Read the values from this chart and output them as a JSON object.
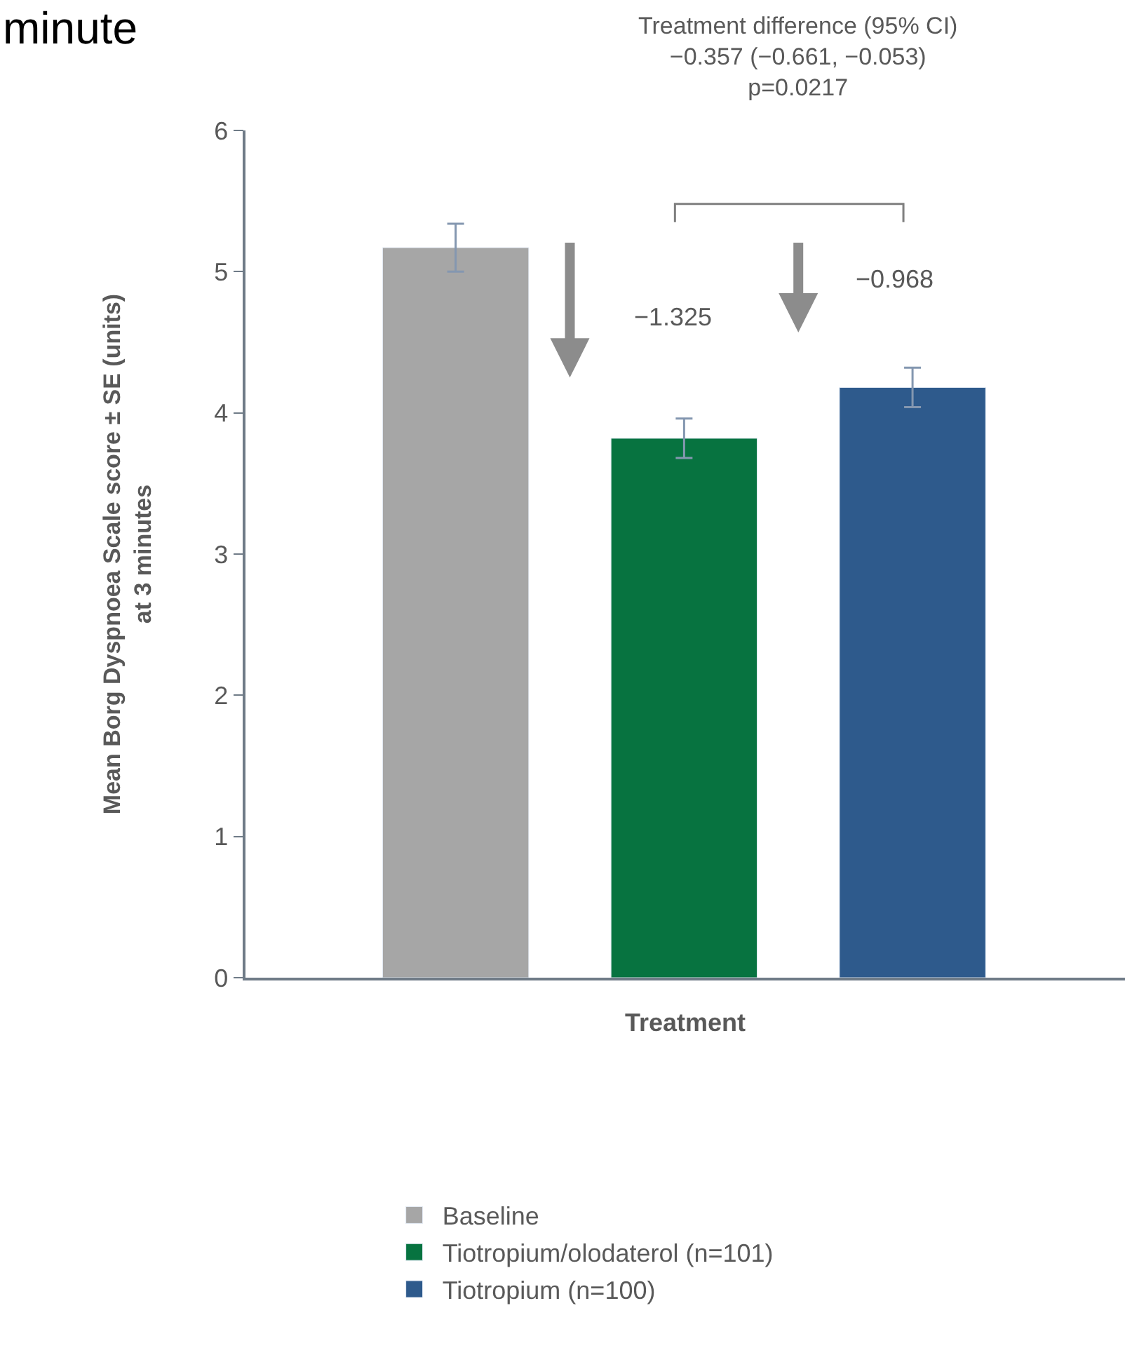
{
  "chart_data": {
    "type": "bar",
    "title": "minute",
    "xlabel": "Treatment",
    "ylabel": "Mean Borg Dyspnoea Scale score ± SE (units)\nat 3 minutes",
    "categories": [
      null,
      null,
      null
    ],
    "series": [
      {
        "name": "Baseline",
        "color": "#a6a6a6",
        "values": [
          5.17,
          null,
          null
        ],
        "errors": [
          0.17,
          null,
          null
        ]
      },
      {
        "name": "Tiotropium/olodaterol (n=101)",
        "color": "#077340",
        "values": [
          null,
          3.82,
          null
        ],
        "errors": [
          null,
          0.14,
          null
        ]
      },
      {
        "name": "Tiotropium (n=100)",
        "color": "#2e5a8c",
        "values": [
          null,
          null,
          4.18
        ],
        "errors": [
          null,
          null,
          0.14
        ]
      }
    ],
    "ylim": [
      0,
      6
    ],
    "yticks": [
      0,
      1,
      2,
      3,
      4,
      5,
      6
    ],
    "legend": "bottom",
    "annotations": [
      "Treatment difference (95% CI)\n−0.357 (−0.661, −0.053)\np=0.0217",
      "−1.325",
      "−0.968"
    ]
  }
}
